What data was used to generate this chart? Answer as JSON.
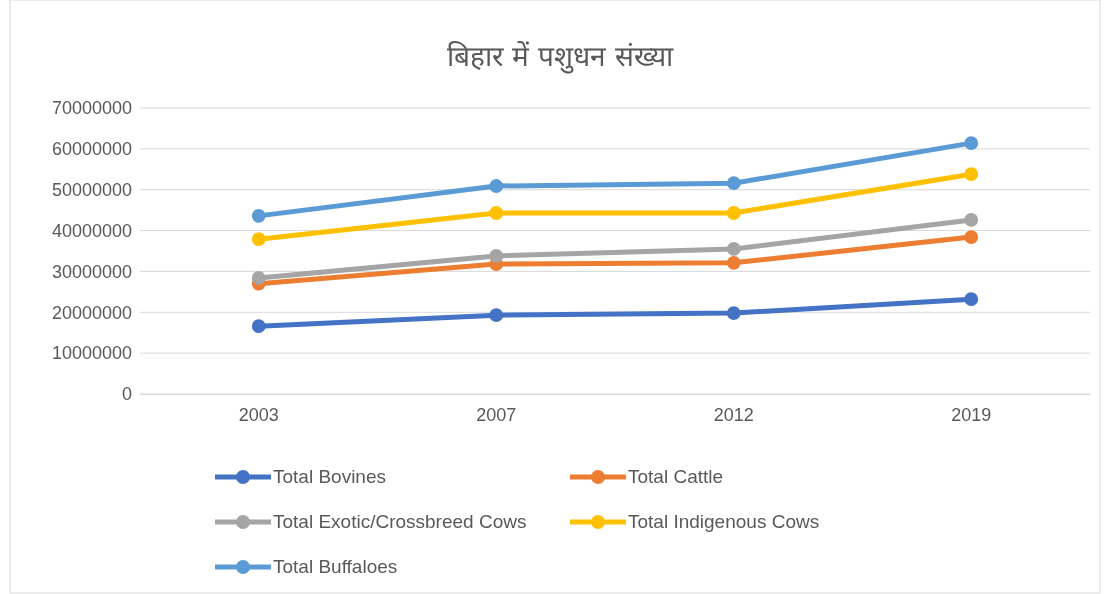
{
  "chart_data": {
    "type": "line",
    "title": "बिहार में पशुधन संख्या",
    "categories": [
      "2003",
      "2007",
      "2012",
      "2019"
    ],
    "series": [
      {
        "name": "Total Bovines",
        "color": "#4472c4",
        "values": [
          16600000,
          19300000,
          19800000,
          23200000
        ]
      },
      {
        "name": "Total Cattle",
        "color": "#ed7d31",
        "values": [
          27000000,
          31800000,
          32100000,
          38400000
        ]
      },
      {
        "name": "Total Exotic/Crossbreed Cows",
        "color": "#a5a5a5",
        "values": [
          28400000,
          33800000,
          35500000,
          42600000
        ]
      },
      {
        "name": "Total Indigenous Cows",
        "color": "#ffc000",
        "values": [
          37900000,
          44300000,
          44300000,
          53800000
        ]
      },
      {
        "name": "Total Buffaloes",
        "color": "#5b9bd5",
        "values": [
          43600000,
          50900000,
          51600000,
          61400000
        ]
      }
    ],
    "ylim": [
      0,
      70000000
    ],
    "yticks": [
      0,
      10000000,
      20000000,
      30000000,
      40000000,
      50000000,
      60000000,
      70000000
    ],
    "grid": "y",
    "legend": "bottom",
    "marker": "circle",
    "line_style": "solid"
  }
}
